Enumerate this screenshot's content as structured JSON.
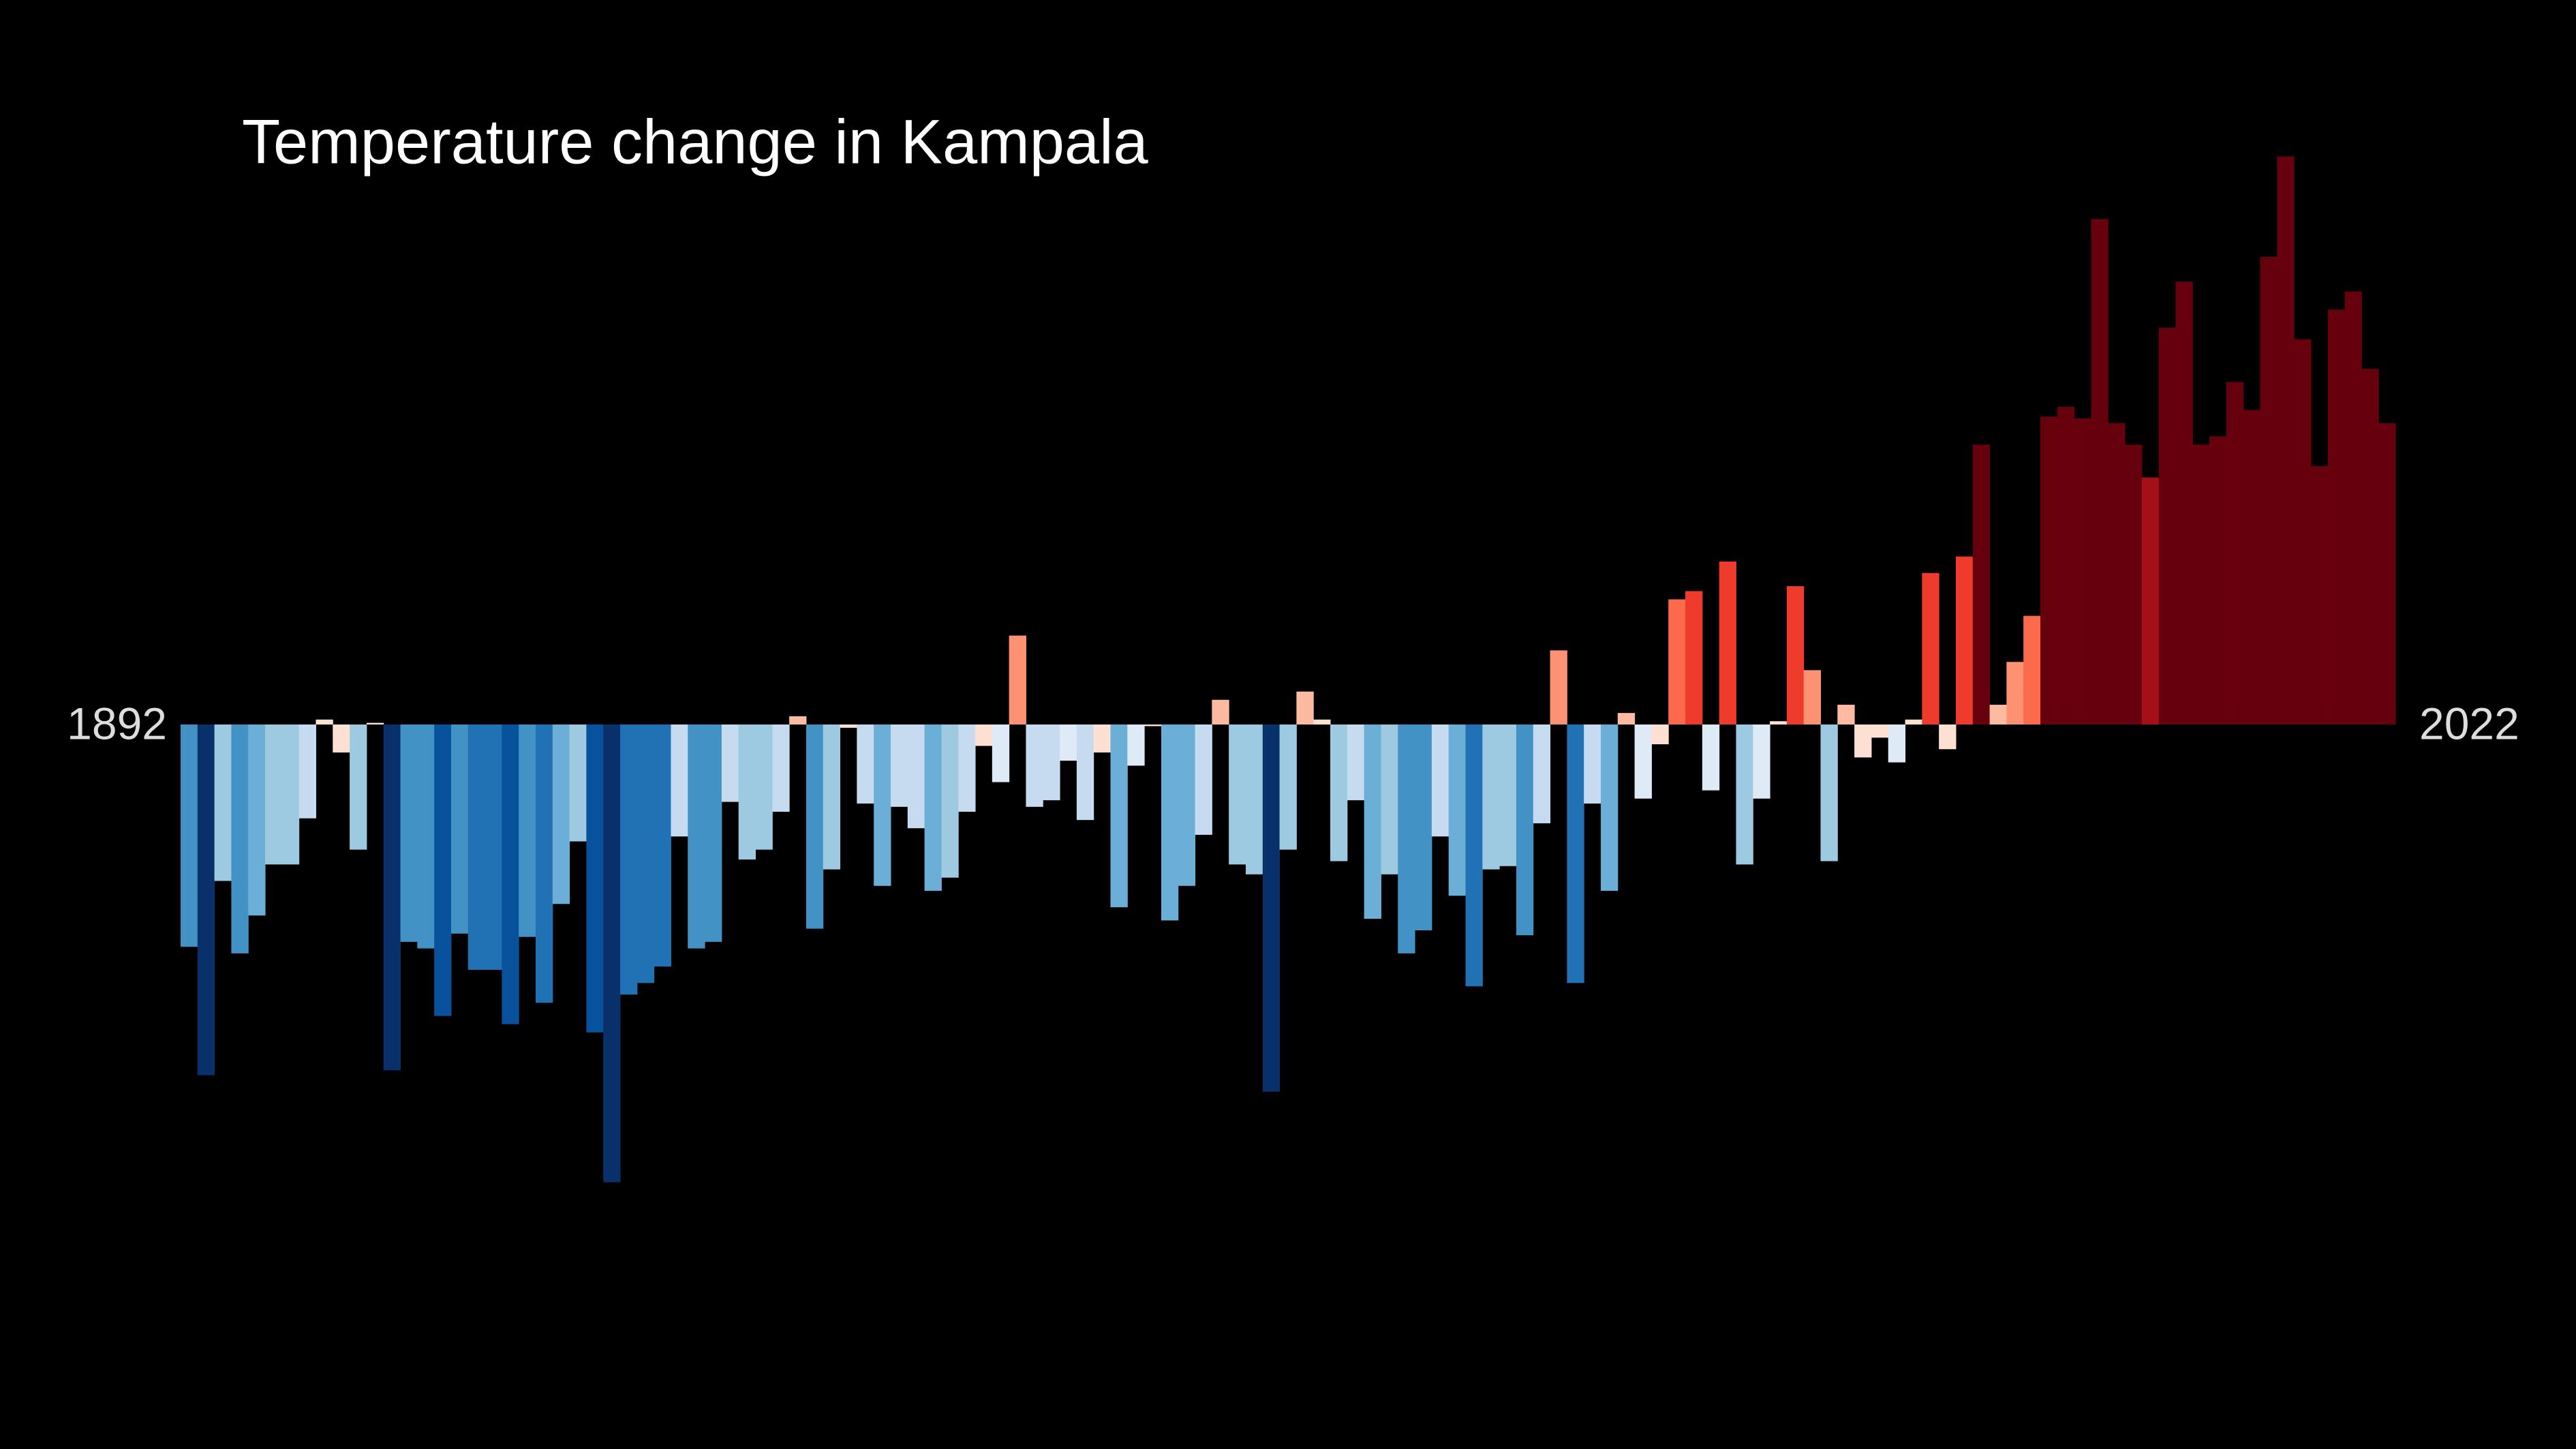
{
  "chart_data": {
    "type": "bar",
    "title": "Temperature change in Kampala",
    "x": [
      1892,
      1893,
      1894,
      1895,
      1896,
      1897,
      1898,
      1899,
      1900,
      1901,
      1902,
      1903,
      1904,
      1905,
      1906,
      1907,
      1908,
      1909,
      1910,
      1911,
      1912,
      1913,
      1914,
      1915,
      1916,
      1917,
      1918,
      1919,
      1920,
      1921,
      1922,
      1923,
      1924,
      1925,
      1926,
      1927,
      1928,
      1929,
      1930,
      1931,
      1932,
      1933,
      1934,
      1935,
      1936,
      1937,
      1938,
      1939,
      1940,
      1941,
      1942,
      1943,
      1944,
      1945,
      1946,
      1947,
      1948,
      1949,
      1950,
      1951,
      1952,
      1953,
      1954,
      1955,
      1956,
      1957,
      1958,
      1959,
      1960,
      1961,
      1962,
      1963,
      1964,
      1965,
      1966,
      1967,
      1968,
      1969,
      1970,
      1971,
      1972,
      1973,
      1974,
      1975,
      1976,
      1977,
      1978,
      1979,
      1980,
      1981,
      1982,
      1983,
      1984,
      1985,
      1986,
      1987,
      1988,
      1989,
      1990,
      1991,
      1992,
      1993,
      1994,
      1995,
      1996,
      1997,
      1998,
      1999,
      2000,
      2001,
      2002,
      2003,
      2004,
      2005,
      2006,
      2007,
      2008,
      2009,
      2010,
      2011,
      2012,
      2013,
      2014,
      2015,
      2016,
      2017,
      2018,
      2019,
      2020,
      2021,
      2022
    ],
    "values": [
      -1.35,
      -2.13,
      -0.95,
      -1.39,
      -1.16,
      -0.85,
      -0.85,
      -0.57,
      0.03,
      -0.17,
      -0.76,
      0.01,
      -2.1,
      -1.32,
      -1.36,
      -1.77,
      -1.27,
      -1.49,
      -1.49,
      -1.82,
      -1.29,
      -1.69,
      -1.09,
      -0.71,
      -1.87,
      -2.78,
      -1.64,
      -1.57,
      -1.47,
      -0.68,
      -1.36,
      -1.32,
      -0.47,
      -0.82,
      -0.76,
      -0.53,
      0.05,
      -1.24,
      -0.88,
      -0.02,
      -0.48,
      -0.98,
      -0.5,
      -0.63,
      -1.01,
      -0.93,
      -0.53,
      -0.13,
      -0.35,
      0.54,
      -0.5,
      -0.46,
      -0.22,
      -0.58,
      -0.17,
      -1.11,
      -0.25,
      -0.01,
      -1.19,
      -0.98,
      -0.67,
      0.15,
      -0.85,
      -0.91,
      -2.23,
      -0.76,
      0.2,
      0.03,
      -0.83,
      -0.46,
      -1.18,
      -0.91,
      -1.39,
      -1.25,
      -0.68,
      -1.04,
      -1.59,
      -0.88,
      -0.86,
      -1.28,
      -0.6,
      0.45,
      -1.57,
      -0.48,
      -1.01,
      0.07,
      -0.45,
      -0.12,
      0.76,
      0.81,
      -0.4,
      0.99,
      -0.85,
      -0.45,
      0.02,
      0.84,
      0.33,
      -0.83,
      0.12,
      -0.2,
      -0.08,
      -0.23,
      0.03,
      0.92,
      -0.15,
      1.02,
      1.7,
      0.12,
      0.38,
      0.66,
      1.87,
      1.93,
      1.86,
      3.07,
      1.83,
      1.7,
      1.5,
      2.41,
      2.69,
      1.7,
      1.75,
      2.08,
      1.91,
      2.84,
      3.45,
      2.34,
      1.57,
      2.52,
      2.63,
      2.16,
      1.83
    ],
    "xlim": [
      1891.5,
      2022.5
    ],
    "ylim": [
      -4.4,
      4.4
    ],
    "colormap": [
      "#08306b",
      "#08519c",
      "#2171b5",
      "#4292c6",
      "#6baed6",
      "#9ecae1",
      "#c6dbef",
      "#deebf7",
      "#fee0d2",
      "#fcbba1",
      "#fc9272",
      "#fb6a4a",
      "#ef3b2c",
      "#cb181d",
      "#a50f15",
      "#67000d"
    ],
    "clim": [
      -2.2,
      1.8
    ],
    "background": "#000000",
    "text_color": "#ffffff"
  }
}
